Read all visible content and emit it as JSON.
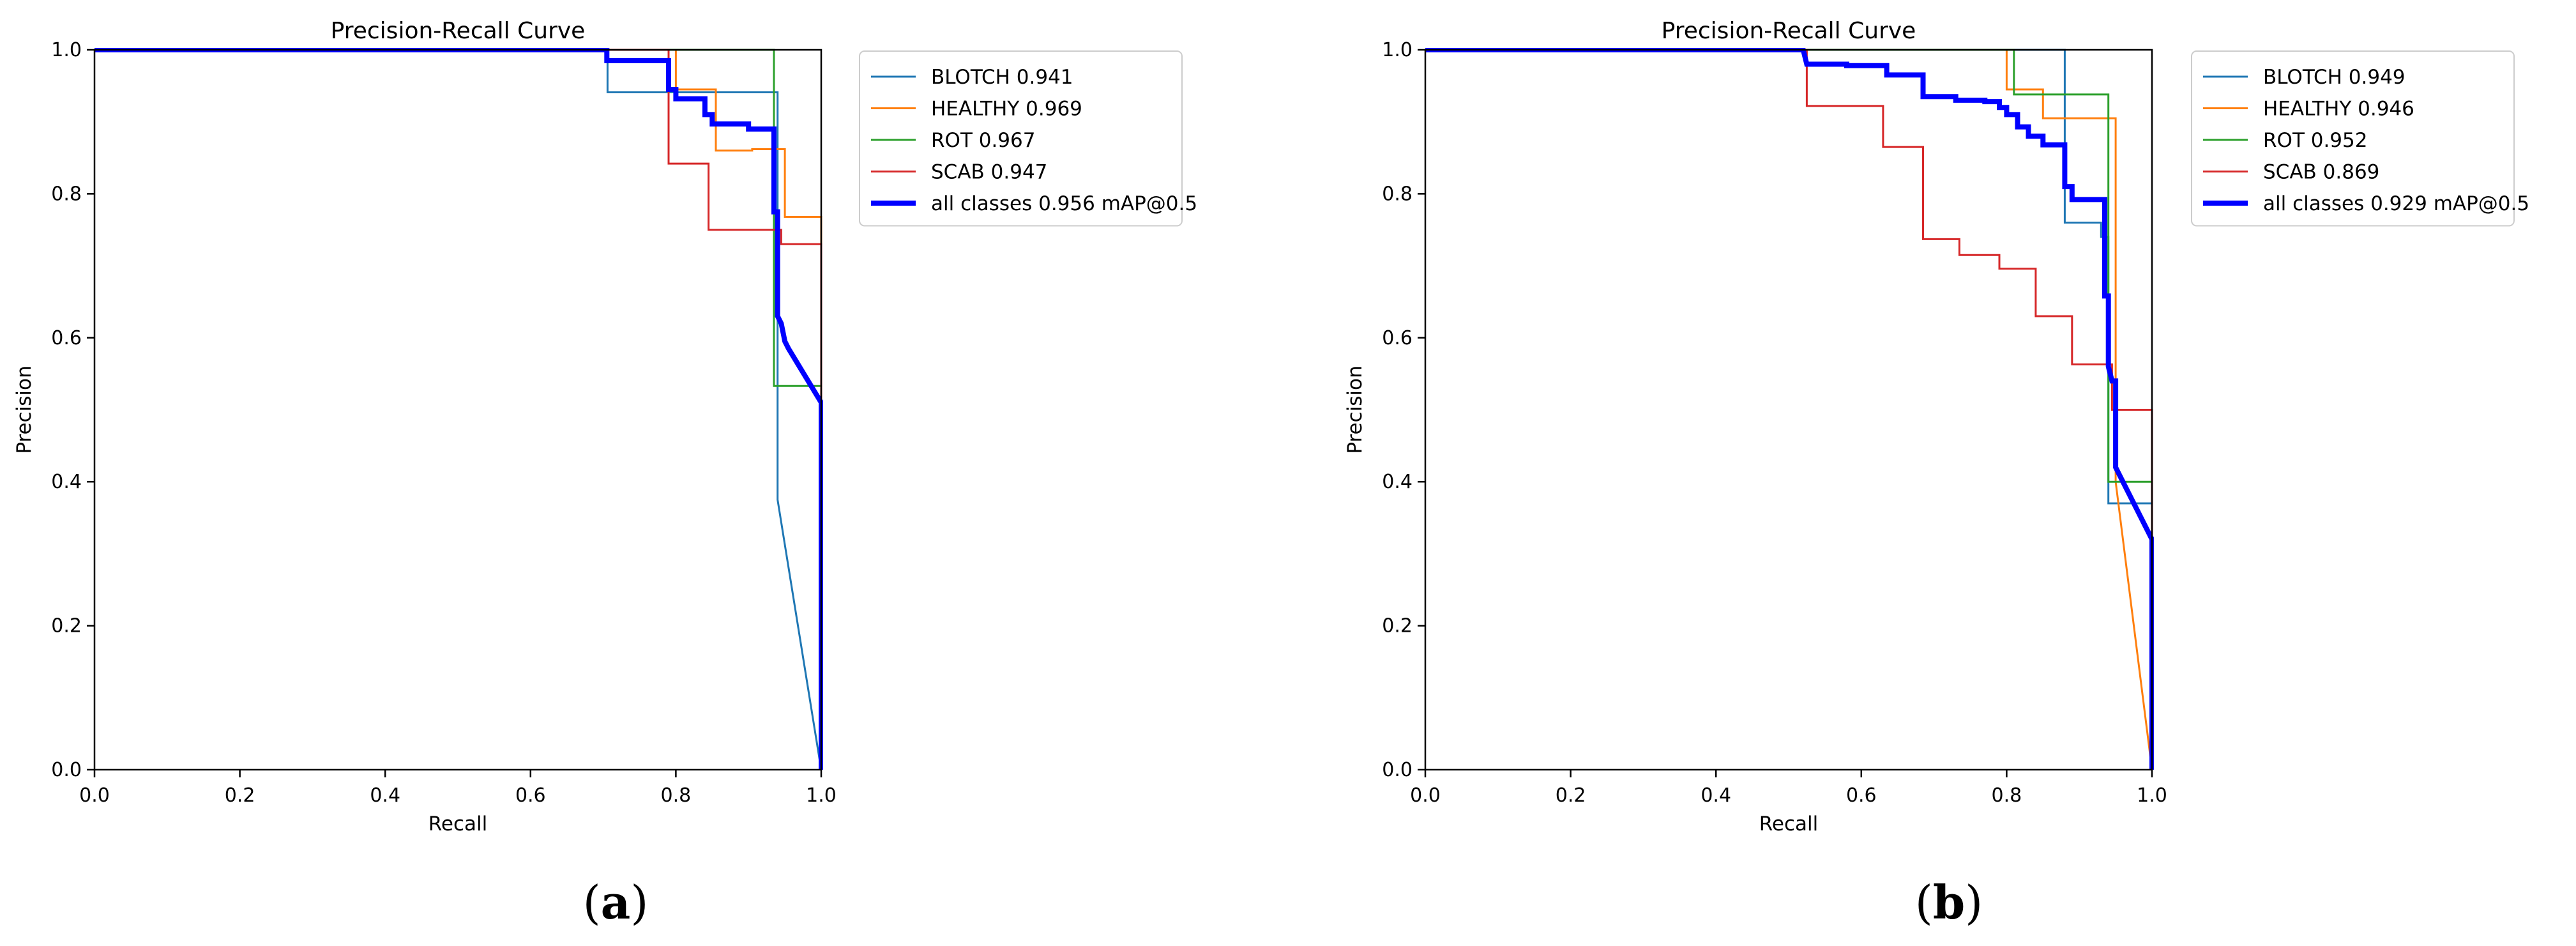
{
  "chart_data": [
    {
      "type": "line",
      "title": "Precision-Recall Curve",
      "xlabel": "Recall",
      "ylabel": "Precision",
      "panel_label": "a",
      "xlim": [
        0,
        1
      ],
      "ylim": [
        0,
        1
      ],
      "xticks": [
        "0.0",
        "0.2",
        "0.4",
        "0.6",
        "0.8",
        "1.0"
      ],
      "yticks": [
        "0.0",
        "0.2",
        "0.4",
        "0.6",
        "0.8",
        "1.0"
      ],
      "grid": false,
      "legend_position": "outside-top-right",
      "series": [
        {
          "name": "BLOTCH 0.941",
          "color": "#1f77b4",
          "width": "thin",
          "x": [
            0,
            0.7,
            0.706,
            0.706,
            0.94,
            0.94,
            0.94,
            1.0,
            1.0
          ],
          "y": [
            1.0,
            1.0,
            1.0,
            0.941,
            0.941,
            0.72,
            0.375,
            0.0,
            0.0
          ]
        },
        {
          "name": "HEALTHY 0.969",
          "color": "#ff7f0e",
          "width": "thin",
          "x": [
            0,
            0.79,
            0.8,
            0.8,
            0.855,
            0.855,
            0.905,
            0.905,
            0.95,
            0.95,
            1.0,
            1.0
          ],
          "y": [
            1.0,
            1.0,
            1.0,
            0.945,
            0.945,
            0.86,
            0.86,
            0.862,
            0.862,
            0.768,
            0.768,
            0.53
          ],
          "notes": ""
        },
        {
          "name": "ROT 0.967",
          "color": "#2ca02c",
          "width": "thin",
          "x": [
            0,
            0.935,
            0.935,
            0.935,
            1.0,
            1.0
          ],
          "y": [
            1.0,
            1.0,
            0.94,
            0.533,
            0.533,
            0.0
          ]
        },
        {
          "name": "SCAB 0.947",
          "color": "#d62728",
          "width": "thin",
          "x": [
            0,
            0.79,
            0.79,
            0.845,
            0.845,
            0.945,
            0.945,
            1.0,
            1.0
          ],
          "y": [
            1.0,
            1.0,
            0.842,
            0.842,
            0.75,
            0.75,
            0.73,
            0.73,
            0.0
          ]
        },
        {
          "name": "all classes 0.956 mAP@0.5",
          "color": "#0000ff",
          "width": "thick",
          "x": [
            0,
            0.705,
            0.705,
            0.79,
            0.79,
            0.8,
            0.8,
            0.84,
            0.84,
            0.85,
            0.85,
            0.9,
            0.9,
            0.935,
            0.935,
            0.94,
            0.94,
            0.945,
            0.95,
            0.955,
            1.0,
            1.0
          ],
          "y": [
            1.0,
            1.0,
            0.985,
            0.985,
            0.945,
            0.945,
            0.932,
            0.932,
            0.91,
            0.91,
            0.897,
            0.897,
            0.89,
            0.89,
            0.775,
            0.775,
            0.63,
            0.62,
            0.595,
            0.585,
            0.51,
            0.0
          ]
        }
      ]
    },
    {
      "type": "line",
      "title": "Precision-Recall Curve",
      "xlabel": "Recall",
      "ylabel": "Precision",
      "panel_label": "b",
      "xlim": [
        0,
        1
      ],
      "ylim": [
        0,
        1
      ],
      "xticks": [
        "0.0",
        "0.2",
        "0.4",
        "0.6",
        "0.8",
        "1.0"
      ],
      "yticks": [
        "0.0",
        "0.2",
        "0.4",
        "0.6",
        "0.8",
        "1.0"
      ],
      "grid": false,
      "legend_position": "outside-top-right",
      "series": [
        {
          "name": "BLOTCH 0.949",
          "color": "#1f77b4",
          "width": "thin",
          "x": [
            0,
            0.88,
            0.88,
            0.88,
            0.93,
            0.93,
            0.94,
            0.94,
            1.0,
            1.0
          ],
          "y": [
            1.0,
            1.0,
            1.0,
            0.76,
            0.76,
            0.74,
            0.74,
            0.37,
            0.37,
            0.0
          ]
        },
        {
          "name": "HEALTHY 0.946",
          "color": "#ff7f0e",
          "width": "thin",
          "x": [
            0,
            0.8,
            0.8,
            0.85,
            0.85,
            0.95,
            0.95,
            1.0,
            1.0
          ],
          "y": [
            1.0,
            1.0,
            0.945,
            0.945,
            0.905,
            0.905,
            0.4,
            0.0,
            0.0
          ]
        },
        {
          "name": "ROT 0.952",
          "color": "#2ca02c",
          "width": "thin",
          "x": [
            0,
            0.81,
            0.81,
            0.94,
            0.94,
            1.0,
            1.0
          ],
          "y": [
            1.0,
            1.0,
            0.938,
            0.938,
            0.4,
            0.4,
            0.0
          ]
        },
        {
          "name": "SCAB 0.869",
          "color": "#d62728",
          "width": "thin",
          "x": [
            0,
            0.525,
            0.525,
            0.63,
            0.63,
            0.685,
            0.685,
            0.735,
            0.735,
            0.79,
            0.79,
            0.84,
            0.84,
            0.89,
            0.89,
            0.945,
            0.945,
            1.0,
            1.0
          ],
          "y": [
            1.0,
            1.0,
            0.922,
            0.922,
            0.865,
            0.865,
            0.737,
            0.737,
            0.715,
            0.715,
            0.696,
            0.696,
            0.63,
            0.63,
            0.563,
            0.563,
            0.5,
            0.5,
            0.0
          ]
        },
        {
          "name": "all classes 0.929 mAP@0.5",
          "color": "#0000ff",
          "width": "thick",
          "x": [
            0,
            0.52,
            0.525,
            0.58,
            0.58,
            0.635,
            0.635,
            0.685,
            0.685,
            0.73,
            0.73,
            0.77,
            0.77,
            0.79,
            0.79,
            0.8,
            0.8,
            0.815,
            0.815,
            0.83,
            0.83,
            0.85,
            0.85,
            0.88,
            0.88,
            0.89,
            0.89,
            0.935,
            0.935,
            0.94,
            0.94,
            0.945,
            0.95,
            0.95,
            1.0,
            1.0
          ],
          "y": [
            1.0,
            1.0,
            0.98,
            0.98,
            0.978,
            0.978,
            0.965,
            0.965,
            0.935,
            0.935,
            0.93,
            0.93,
            0.928,
            0.928,
            0.92,
            0.92,
            0.91,
            0.91,
            0.893,
            0.893,
            0.88,
            0.88,
            0.868,
            0.868,
            0.81,
            0.81,
            0.792,
            0.792,
            0.658,
            0.658,
            0.56,
            0.54,
            0.54,
            0.42,
            0.32,
            0.0
          ]
        }
      ]
    }
  ]
}
